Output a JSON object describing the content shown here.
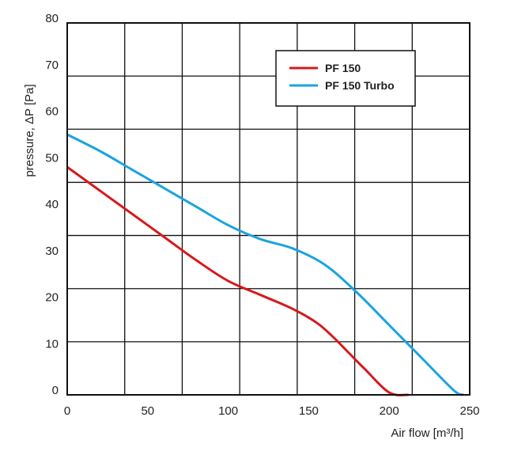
{
  "chart_data": {
    "type": "line",
    "xlabel": "Air flow [m³/h]",
    "ylabel": "pressure, ΔP [Pa]",
    "xlim": [
      0,
      250
    ],
    "ylim": [
      0,
      80
    ],
    "x_ticks": [
      0,
      50,
      100,
      150,
      200,
      250
    ],
    "y_ticks": [
      0,
      10,
      20,
      30,
      40,
      50,
      60,
      70,
      80
    ],
    "grid": true,
    "legend_position": "top-right",
    "series": [
      {
        "name": "PF 150",
        "color": "#d7191c",
        "points": [
          [
            0,
            49
          ],
          [
            20,
            44
          ],
          [
            40,
            39
          ],
          [
            60,
            34
          ],
          [
            80,
            29
          ],
          [
            100,
            24.5
          ],
          [
            120,
            21.5
          ],
          [
            140,
            18.5
          ],
          [
            155,
            15.5
          ],
          [
            165,
            12.5
          ],
          [
            175,
            9
          ],
          [
            185,
            5.5
          ],
          [
            200,
            0.5
          ],
          [
            212,
            0
          ]
        ]
      },
      {
        "name": "PF 150 Turbo",
        "color": "#1aa3e0",
        "points": [
          [
            0,
            56
          ],
          [
            20,
            52.5
          ],
          [
            40,
            48.5
          ],
          [
            60,
            44.5
          ],
          [
            80,
            40.5
          ],
          [
            100,
            36.5
          ],
          [
            120,
            33.5
          ],
          [
            140,
            31.5
          ],
          [
            160,
            28
          ],
          [
            180,
            22
          ],
          [
            200,
            15
          ],
          [
            220,
            8
          ],
          [
            240,
            1
          ],
          [
            246,
            0
          ]
        ]
      }
    ]
  }
}
